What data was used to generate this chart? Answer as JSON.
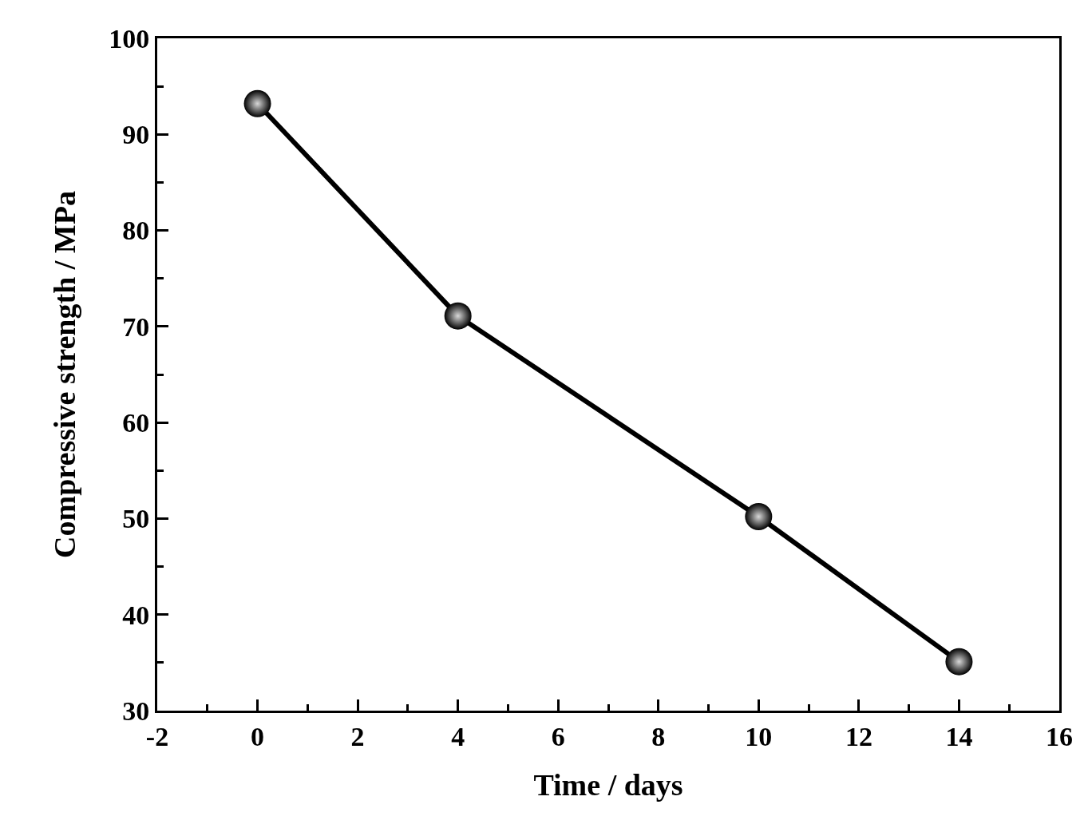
{
  "chart_data": {
    "type": "line",
    "xlabel": "Time / days",
    "ylabel": "Compressive strength / MPa",
    "x": [
      0,
      4,
      10,
      14
    ],
    "series": [
      {
        "color": "#000000",
        "values": [
          93.2,
          71.1,
          50.2,
          35.1
        ]
      }
    ],
    "xlim": [
      -2,
      16
    ],
    "xticks": [
      -2,
      0,
      2,
      4,
      6,
      8,
      10,
      12,
      14,
      16
    ],
    "ylim": [
      30,
      100
    ],
    "yticks": [
      30,
      40,
      50,
      60,
      70,
      80,
      90,
      100
    ],
    "marker": "circle",
    "line_style": "solid"
  }
}
